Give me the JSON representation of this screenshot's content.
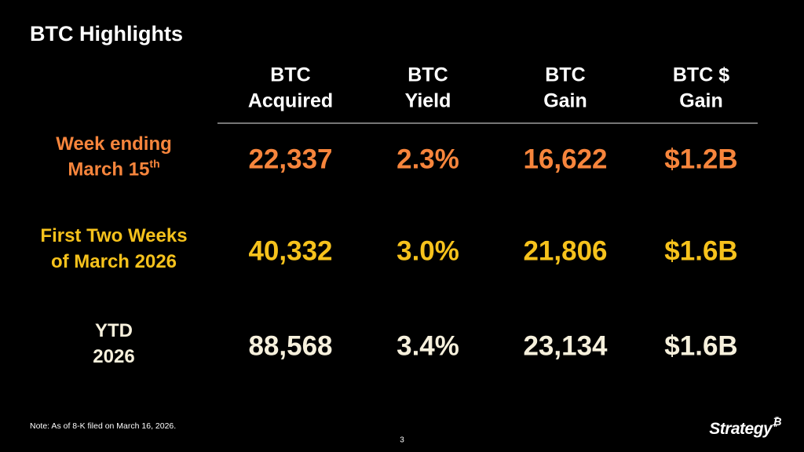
{
  "title": "BTC Highlights",
  "table": {
    "columns": [
      [
        "BTC",
        "Acquired"
      ],
      [
        "BTC",
        "Yield"
      ],
      [
        "BTC",
        "Gain"
      ],
      [
        "BTC $",
        "Gain"
      ]
    ],
    "rows": [
      {
        "label": [
          "Week ending",
          "March 15"
        ],
        "label_superscript": "th",
        "cells": [
          "22,337",
          "2.3%",
          "16,622",
          "$1.2B"
        ]
      },
      {
        "label": [
          "First Two Weeks",
          "of March 2026"
        ],
        "cells": [
          "40,332",
          "3.0%",
          "21,806",
          "$1.6B"
        ]
      },
      {
        "label": [
          "YTD",
          "2026"
        ],
        "cells": [
          "88,568",
          "3.4%",
          "23,134",
          "$1.6B"
        ]
      }
    ]
  },
  "note": "Note: As of 8-K filed on March 16, 2026.",
  "page_number": "3",
  "logo": {
    "text": "Strategy",
    "mark": "₿"
  }
}
